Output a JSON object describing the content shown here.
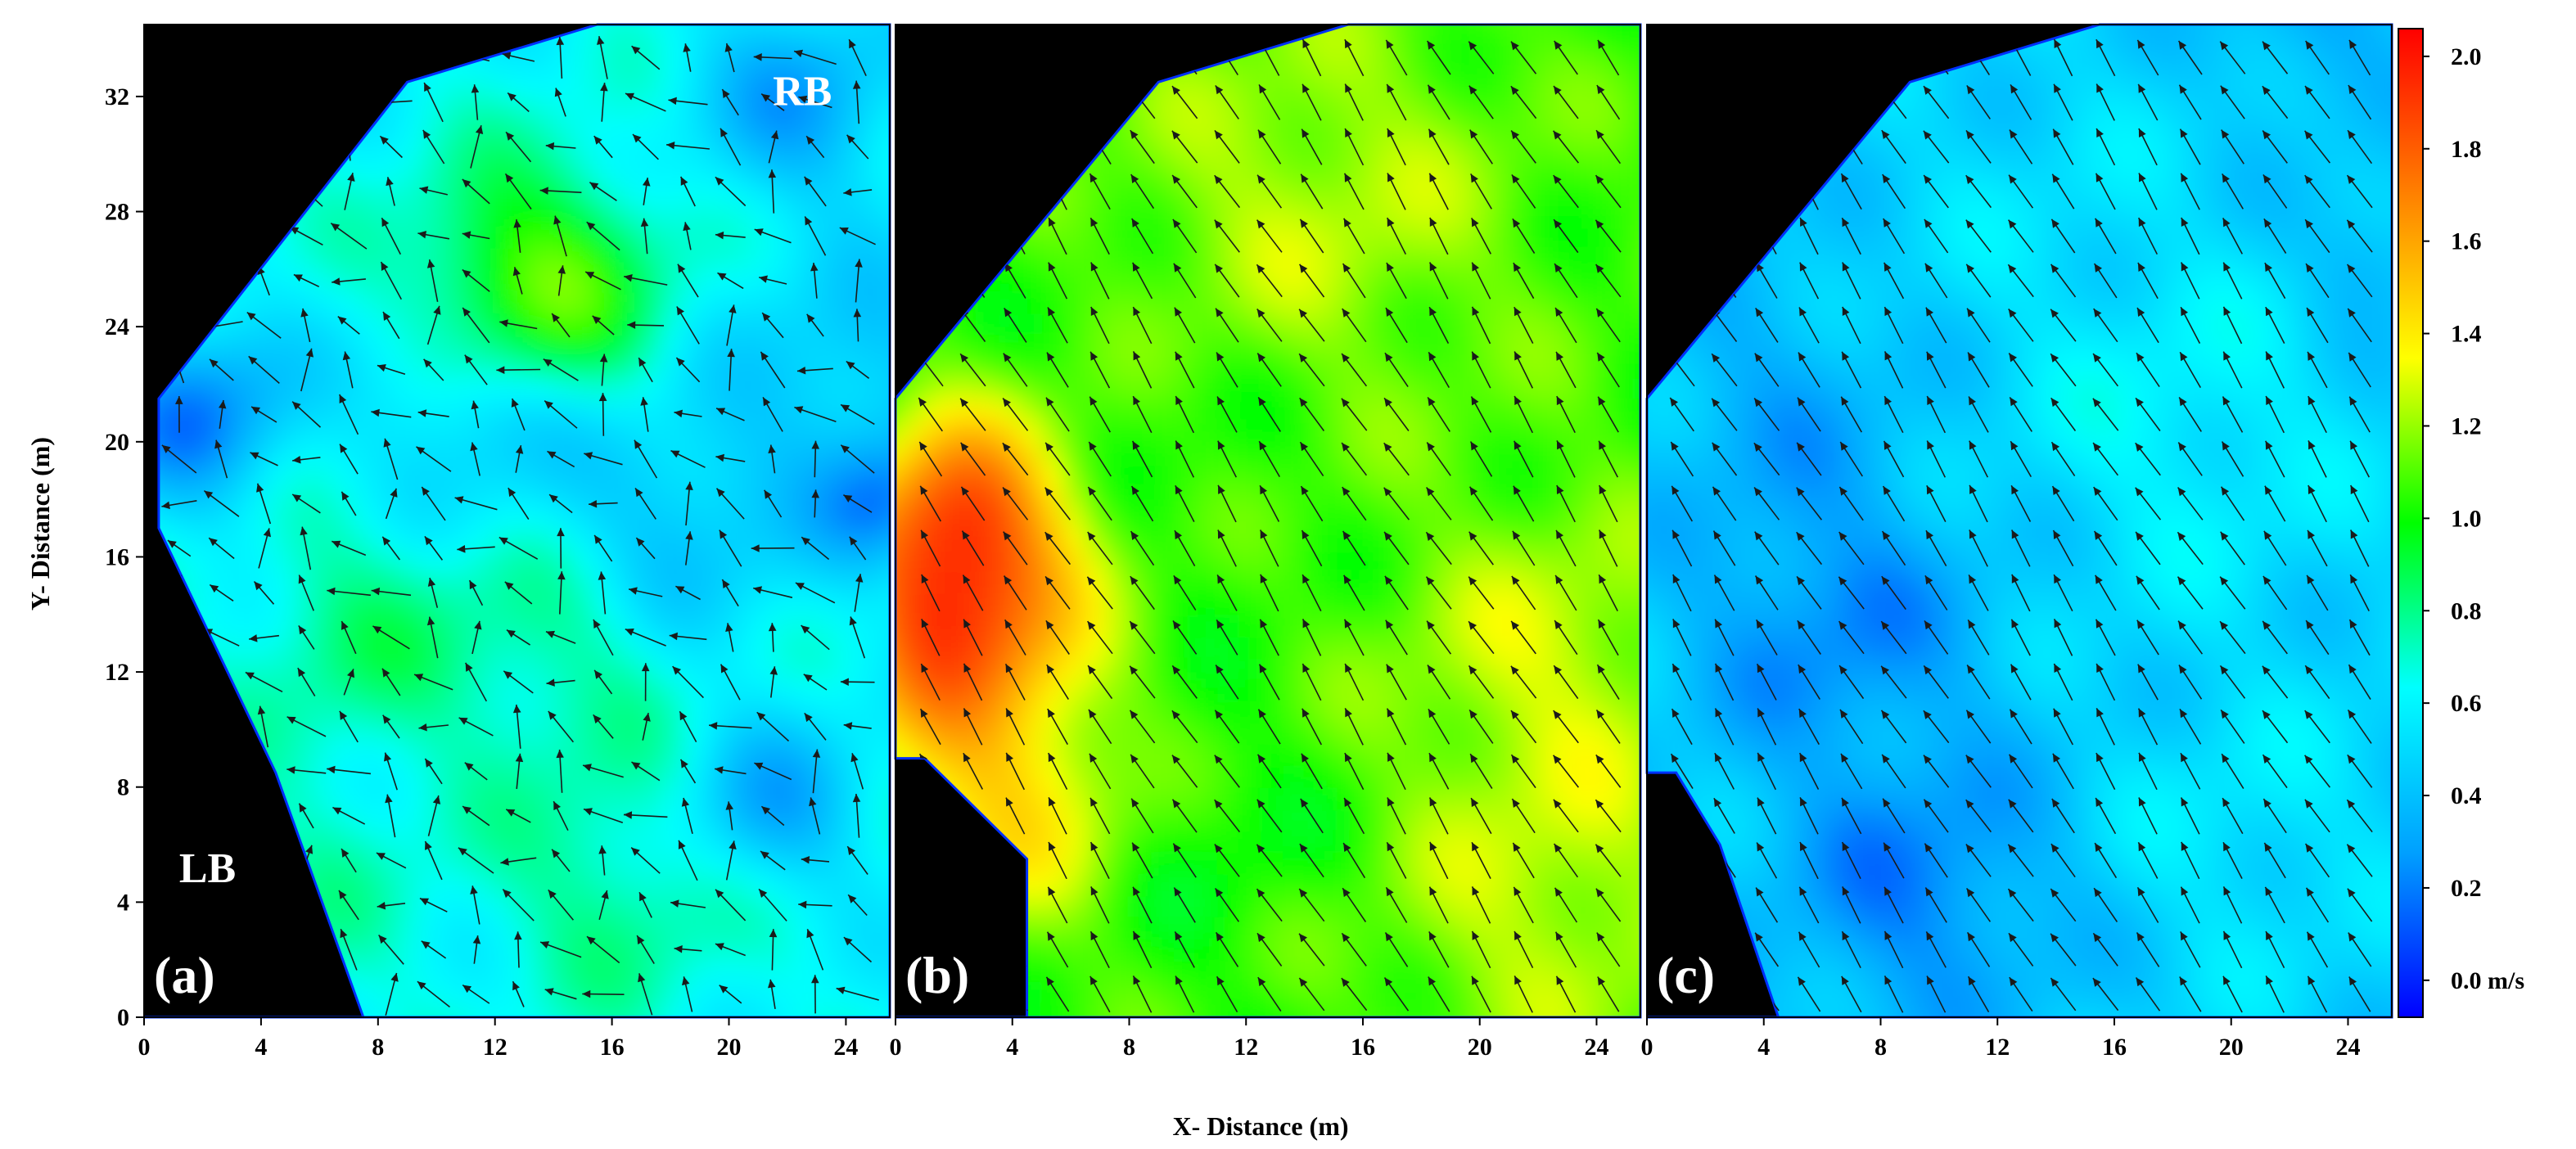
{
  "figure": {
    "xlabel": "X- Distance (m)",
    "ylabel": "Y- Distance (m)"
  },
  "chart_data": [
    {
      "type": "heatmap",
      "panel_label": "(a)",
      "bank_labels": {
        "left": "LB",
        "right": "RB"
      },
      "x_ticks": [
        0,
        4,
        8,
        12,
        16,
        20,
        24
      ],
      "y_ticks": [
        0,
        4,
        8,
        12,
        16,
        20,
        24,
        28,
        32
      ],
      "xlim": [
        0,
        25.5
      ],
      "ylim": [
        0,
        34.5
      ],
      "base_velocity": 0.62,
      "hotspots": [
        {
          "x": 1.5,
          "y": 20.5,
          "r": 2.2,
          "v": -0.42
        },
        {
          "x": 13,
          "y": 25,
          "r": 2.8,
          "v": 0.55
        },
        {
          "x": 11,
          "y": 21,
          "r": 2.5,
          "v": -0.25
        },
        {
          "x": 18,
          "y": 17,
          "r": 3,
          "v": -0.22
        },
        {
          "x": 22,
          "y": 31.5,
          "r": 2.5,
          "v": -0.3
        },
        {
          "x": 25,
          "y": 17.5,
          "r": 1.6,
          "v": -0.35
        },
        {
          "x": 21,
          "y": 7,
          "r": 2.2,
          "v": -0.3
        },
        {
          "x": 7,
          "y": 13,
          "r": 3,
          "v": 0.18
        },
        {
          "x": 14,
          "y": 12,
          "r": 3,
          "v": 0.15
        },
        {
          "x": 16,
          "y": 4,
          "r": 3,
          "v": 0.18
        },
        {
          "x": 5,
          "y": 4,
          "r": 3,
          "v": 0.1
        },
        {
          "x": 24,
          "y": 22,
          "r": 3,
          "v": -0.2
        }
      ],
      "flow_direction": "mixed",
      "boundary": [
        [
          0,
          0
        ],
        [
          7.5,
          0
        ],
        [
          4.5,
          8.5
        ],
        [
          0.5,
          17
        ],
        [
          0.5,
          21.5
        ],
        [
          9,
          32.5
        ],
        [
          15.5,
          34.5
        ],
        [
          25.5,
          34.5
        ],
        [
          25.5,
          0
        ]
      ]
    },
    {
      "type": "heatmap",
      "panel_label": "(b)",
      "x_ticks": [
        0,
        4,
        8,
        12,
        16,
        20,
        24
      ],
      "xlim": [
        0,
        25.5
      ],
      "ylim": [
        0,
        34.5
      ],
      "base_velocity": 1.05,
      "hotspots": [
        {
          "x": 1.5,
          "y": 13.5,
          "r": 3,
          "v": 0.75
        },
        {
          "x": 2,
          "y": 17.5,
          "r": 2.5,
          "v": 0.55
        },
        {
          "x": 3.5,
          "y": 7,
          "r": 3,
          "v": 0.35
        },
        {
          "x": 14,
          "y": 28,
          "r": 5,
          "v": 0.2
        },
        {
          "x": 22,
          "y": 12,
          "r": 4,
          "v": 0.22
        },
        {
          "x": 8,
          "y": 20,
          "r": 4,
          "v": -0.05
        },
        {
          "x": 22,
          "y": 3,
          "r": 4,
          "v": 0.2
        },
        {
          "x": 10,
          "y": 6,
          "r": 3,
          "v": -0.08
        }
      ],
      "flow_direction": "uniform-northwest",
      "boundary": [
        [
          0,
          0
        ],
        [
          4.5,
          0
        ],
        [
          4.5,
          5.5
        ],
        [
          1,
          9
        ],
        [
          0,
          9
        ],
        [
          0,
          21.5
        ],
        [
          9,
          32.5
        ],
        [
          15.5,
          34.5
        ],
        [
          25.5,
          34.5
        ],
        [
          25.5,
          0
        ]
      ]
    },
    {
      "type": "heatmap",
      "panel_label": "(c)",
      "x_ticks": [
        0,
        4,
        8,
        12,
        16,
        20,
        24
      ],
      "xlim": [
        0,
        25.5
      ],
      "ylim": [
        0,
        34.5
      ],
      "base_velocity": 0.46,
      "hotspots": [
        {
          "x": 6,
          "y": 13.5,
          "r": 3.5,
          "v": -0.22
        },
        {
          "x": 9,
          "y": 4,
          "r": 3.5,
          "v": -0.24
        },
        {
          "x": 4,
          "y": 21.5,
          "r": 3,
          "v": -0.12
        },
        {
          "x": 18,
          "y": 20,
          "r": 4,
          "v": 0.14
        },
        {
          "x": 20,
          "y": 6,
          "r": 3.5,
          "v": 0.1
        },
        {
          "x": 24.5,
          "y": 26,
          "r": 1.5,
          "v": -0.15
        },
        {
          "x": 22.5,
          "y": 34,
          "r": 2,
          "v": -0.15
        },
        {
          "x": 13,
          "y": 28,
          "r": 4,
          "v": 0.05
        }
      ],
      "flow_direction": "uniform-northwest",
      "boundary": [
        [
          0,
          0
        ],
        [
          4.5,
          0
        ],
        [
          2.5,
          6
        ],
        [
          1,
          8.5
        ],
        [
          0,
          8.5
        ],
        [
          0,
          21.5
        ],
        [
          9,
          32.5
        ],
        [
          15.5,
          34.5
        ],
        [
          25.5,
          34.5
        ],
        [
          25.5,
          0
        ]
      ]
    }
  ],
  "colorbar": {
    "ticks": [
      {
        "v": 0.0,
        "label": "0.0 m/s"
      },
      {
        "v": 0.2,
        "label": "0.2"
      },
      {
        "v": 0.4,
        "label": "0.4"
      },
      {
        "v": 0.6,
        "label": "0.6"
      },
      {
        "v": 0.8,
        "label": "0.8"
      },
      {
        "v": 1.0,
        "label": "1.0"
      },
      {
        "v": 1.2,
        "label": "1.2"
      },
      {
        "v": 1.4,
        "label": "1.4"
      },
      {
        "v": 1.6,
        "label": "1.6"
      },
      {
        "v": 1.8,
        "label": "1.8"
      },
      {
        "v": 2.0,
        "label": "2.0"
      }
    ],
    "range": [
      -0.08,
      2.06
    ],
    "colors": [
      "#0000ff",
      "#00a0ff",
      "#00ffff",
      "#00ff00",
      "#ffff00",
      "#ff8000",
      "#ff0000"
    ]
  }
}
